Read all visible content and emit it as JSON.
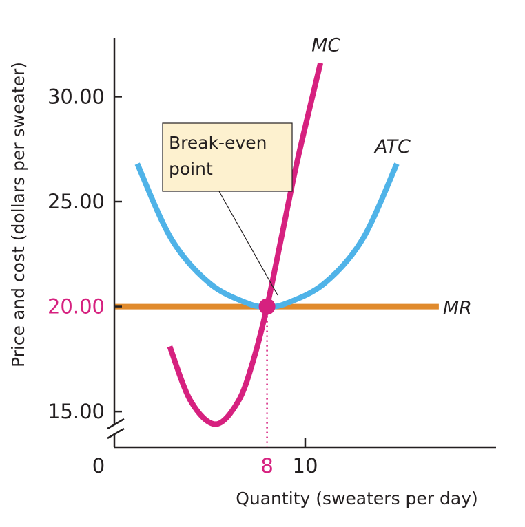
{
  "chart_data": {
    "type": "line",
    "xlabel": "Quantity (sweaters per day)",
    "ylabel": "Price and cost (dollars per sweater)",
    "x_origin_label": "0",
    "x_ticks": [
      {
        "value": 8,
        "label": "8",
        "highlight": true
      },
      {
        "value": 10,
        "label": "10",
        "highlight": false
      }
    ],
    "y_ticks": [
      {
        "value": 15,
        "label": "15.00",
        "highlight": false
      },
      {
        "value": 20,
        "label": "20.00",
        "highlight": true
      },
      {
        "value": 25,
        "label": "25.00",
        "highlight": false
      },
      {
        "value": 30,
        "label": "30.00",
        "highlight": false
      }
    ],
    "xlim": [
      0,
      20
    ],
    "ylim": [
      13.3,
      32.8
    ],
    "y_axis_break": true,
    "series": [
      {
        "name": "MR",
        "color": "#e08a2c",
        "x": [
          0,
          17
        ],
        "y": [
          20,
          20
        ]
      },
      {
        "name": "ATC",
        "color": "#4fb3e8",
        "x": [
          1.2,
          3,
          5,
          7,
          8,
          9,
          11,
          13,
          14.8
        ],
        "y": [
          26.8,
          23.2,
          21.1,
          20.15,
          20,
          20.15,
          21.1,
          23.2,
          26.8
        ]
      },
      {
        "name": "MC",
        "color": "#d6217f",
        "x": [
          2.9,
          4,
          5.3,
          6.5,
          7.3,
          8,
          8.8,
          9.6,
          10.8
        ],
        "y": [
          18.1,
          15.5,
          14.4,
          15.5,
          17.5,
          20,
          23.5,
          27,
          31.6
        ]
      }
    ],
    "annotations": [
      {
        "text_lines": [
          "Break-even",
          "point"
        ],
        "x": 8,
        "y": 20
      }
    ]
  }
}
